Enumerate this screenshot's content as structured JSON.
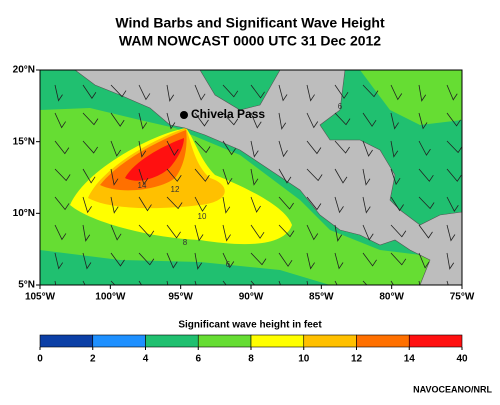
{
  "header": {
    "title": "Wind Barbs and Significant Wave Height",
    "subtitle": "WAM NOWCAST 0000 UTC 31 Dec 2012"
  },
  "map": {
    "xlim": [
      -105,
      -75
    ],
    "ylim": [
      5,
      20
    ],
    "xticks": [
      {
        "value": -105,
        "label": "105°W"
      },
      {
        "value": -100,
        "label": "100°W"
      },
      {
        "value": -95,
        "label": "95°W"
      },
      {
        "value": -90,
        "label": "90°W"
      },
      {
        "value": -85,
        "label": "85°W"
      },
      {
        "value": -80,
        "label": "80°W"
      },
      {
        "value": -75,
        "label": "75°W"
      }
    ],
    "yticks": [
      {
        "value": 20,
        "label": "20°N"
      },
      {
        "value": 15,
        "label": "15°N"
      },
      {
        "value": 10,
        "label": "10°N"
      },
      {
        "value": 5,
        "label": "5°N"
      }
    ],
    "annotation": "Chivela Pass",
    "contour_labels": [
      6,
      14,
      12,
      10,
      8,
      6
    ]
  },
  "colorbar": {
    "label": "Significant wave height in feet",
    "bins": [
      0,
      2,
      4,
      6,
      8,
      10,
      12,
      14,
      40
    ],
    "colors": [
      "#0b3fa6",
      "#1e90ff",
      "#20c070",
      "#66dd33",
      "#ffff00",
      "#ffc000",
      "#ff7000",
      "#ff1010"
    ]
  },
  "footer": {
    "credit": "NAVOCEANO/NRL"
  }
}
